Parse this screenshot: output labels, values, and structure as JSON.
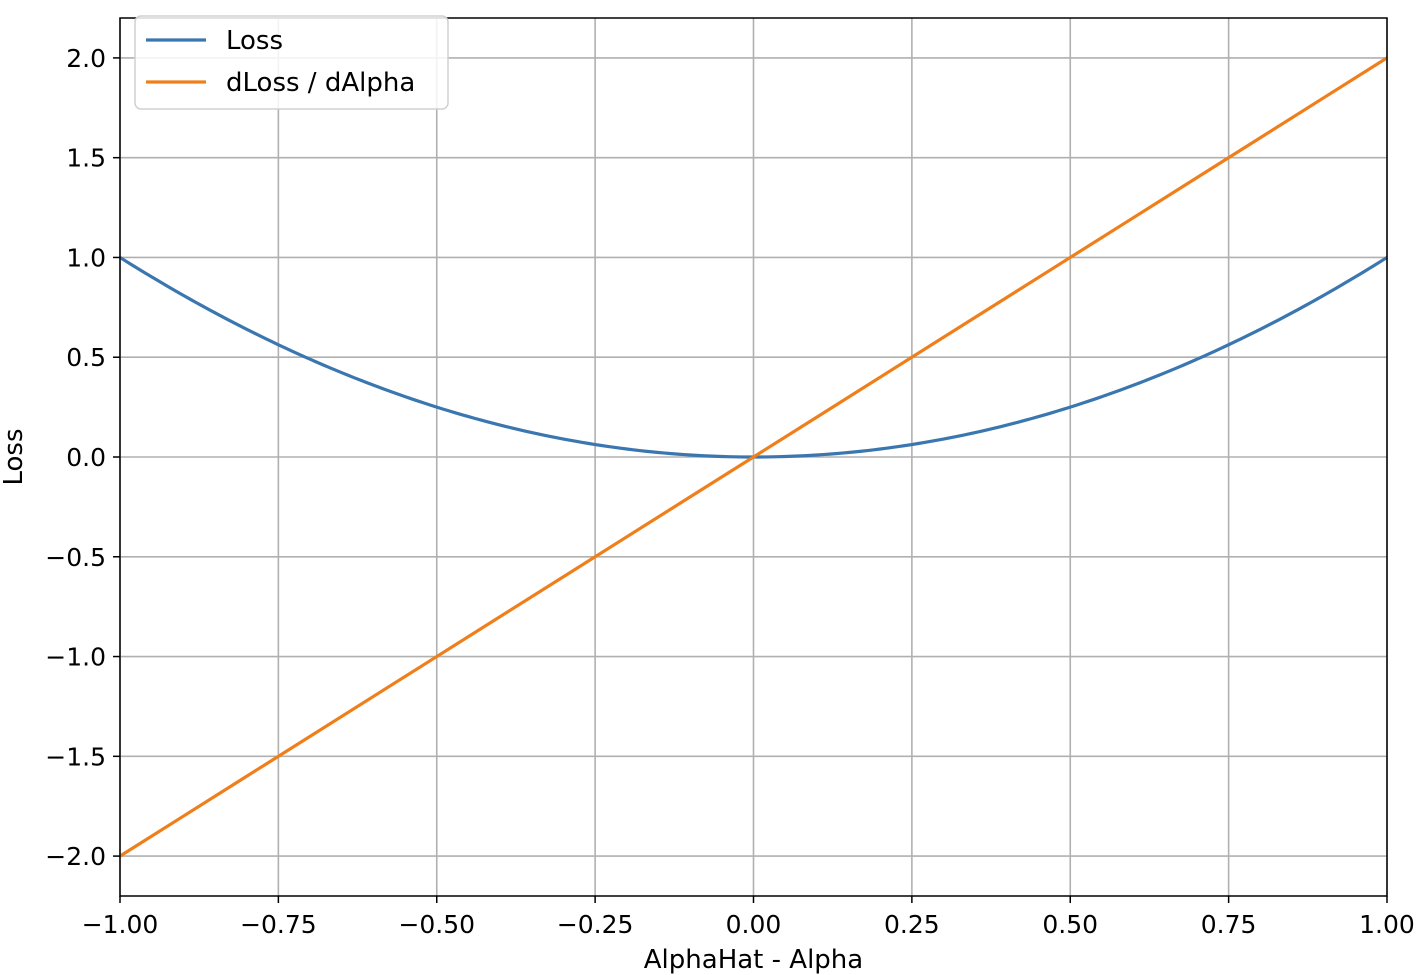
{
  "chart_data": {
    "type": "line",
    "xlabel": "AlphaHat - Alpha",
    "ylabel": "Loss",
    "xlim": [
      -1.0,
      1.0
    ],
    "ylim": [
      -2.2,
      2.2
    ],
    "x_ticks": [
      -1.0,
      -0.75,
      -0.5,
      -0.25,
      0.0,
      0.25,
      0.5,
      0.75,
      1.0
    ],
    "x_tick_labels": [
      "−1.00",
      "−0.75",
      "−0.50",
      "−0.25",
      "0.00",
      "0.25",
      "0.50",
      "0.75",
      "1.00"
    ],
    "y_ticks": [
      -2.0,
      -1.5,
      -1.0,
      -0.5,
      0.0,
      0.5,
      1.0,
      1.5,
      2.0
    ],
    "y_tick_labels": [
      "−2.0",
      "−1.5",
      "−1.0",
      "−0.5",
      "0.0",
      "0.5",
      "1.0",
      "1.5",
      "2.0"
    ],
    "grid": true,
    "legend_position": "upper-left",
    "x": [
      -1.0,
      -0.9,
      -0.8,
      -0.7,
      -0.6,
      -0.5,
      -0.4,
      -0.3,
      -0.2,
      -0.1,
      0.0,
      0.1,
      0.2,
      0.3,
      0.4,
      0.5,
      0.6,
      0.7,
      0.8,
      0.9,
      1.0
    ],
    "series": [
      {
        "name": "Loss",
        "color": "#3a76b0",
        "values": [
          1.0,
          0.81,
          0.64,
          0.49,
          0.36,
          0.25,
          0.16,
          0.09,
          0.04,
          0.01,
          0.0,
          0.01,
          0.04,
          0.09,
          0.16,
          0.25,
          0.36,
          0.49,
          0.64,
          0.81,
          1.0
        ]
      },
      {
        "name": "dLoss / dAlpha",
        "color": "#ef7f1a",
        "values": [
          -2.0,
          -1.8,
          -1.6,
          -1.4,
          -1.2,
          -1.0,
          -0.8,
          -0.6,
          -0.4,
          -0.2,
          0.0,
          0.2,
          0.4,
          0.6,
          0.8,
          1.0,
          1.2,
          1.4,
          1.6,
          1.8,
          2.0
        ]
      }
    ]
  }
}
